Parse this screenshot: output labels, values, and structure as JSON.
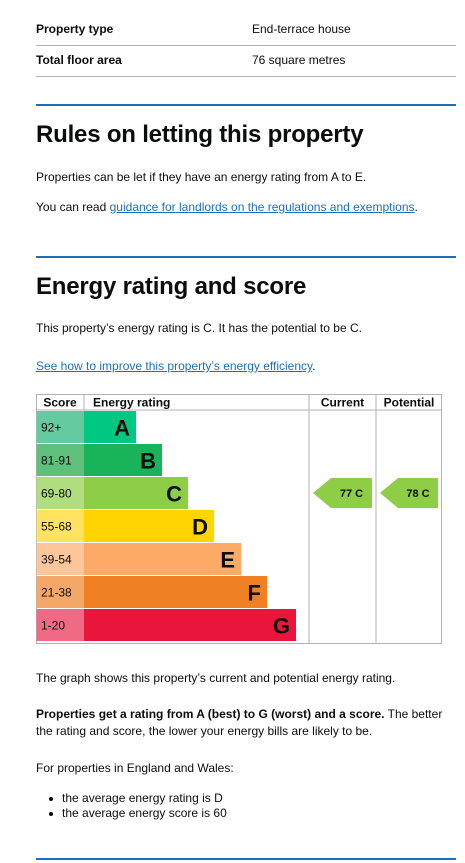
{
  "summary": [
    {
      "label": "Property type",
      "value": "End-terrace house"
    },
    {
      "label": "Total floor area",
      "value": "76 square metres"
    }
  ],
  "letting": {
    "heading": "Rules on letting this property",
    "p1": "Properties can be let if they have an energy rating from A to E.",
    "p2_prefix": "You can read ",
    "p2_link": "guidance for landlords on the regulations and exemptions",
    "p2_suffix": "."
  },
  "energy": {
    "heading": "Energy rating and score",
    "p1": "This property’s energy rating is C. It has the potential to be C.",
    "improve_link": "See how to improve this property’s energy efficiency",
    "improve_suffix": ".",
    "graph_note": "The graph shows this property’s current and potential energy rating.",
    "bold_text": "Properties get a rating from A (best) to G (worst) and a score.",
    "rest_text": " The better the rating and score, the lower your energy bills are likely to be.",
    "average_intro": "For properties in England and Wales:",
    "bullets": [
      "the average energy rating is D",
      "the average energy score is 60"
    ]
  },
  "chart_data": {
    "type": "table",
    "headers": {
      "score": "Score",
      "rating": "Energy rating",
      "current": "Current",
      "potential": "Potential"
    },
    "bands": [
      {
        "score": "92+",
        "letter": "A",
        "color": "#00c781",
        "score_bg": "#64cba1"
      },
      {
        "score": "81-91",
        "letter": "B",
        "color": "#19b459",
        "score_bg": "#5ec07a"
      },
      {
        "score": "69-80",
        "letter": "C",
        "color": "#8dce46",
        "score_bg": "#b0dd7e"
      },
      {
        "score": "55-68",
        "letter": "D",
        "color": "#ffd500",
        "score_bg": "#ffe25f"
      },
      {
        "score": "39-54",
        "letter": "E",
        "color": "#fcaa65",
        "score_bg": "#fdc59a"
      },
      {
        "score": "21-38",
        "letter": "F",
        "color": "#ef8023",
        "score_bg": "#f4a766"
      },
      {
        "score": "1-20",
        "letter": "G",
        "color": "#e9153b",
        "score_bg": "#f06985"
      }
    ],
    "current": {
      "score": 77,
      "letter": "C",
      "label": "77 C",
      "color": "#8dce46"
    },
    "potential": {
      "score": 78,
      "letter": "C",
      "label": "78 C",
      "color": "#8dce46"
    }
  }
}
